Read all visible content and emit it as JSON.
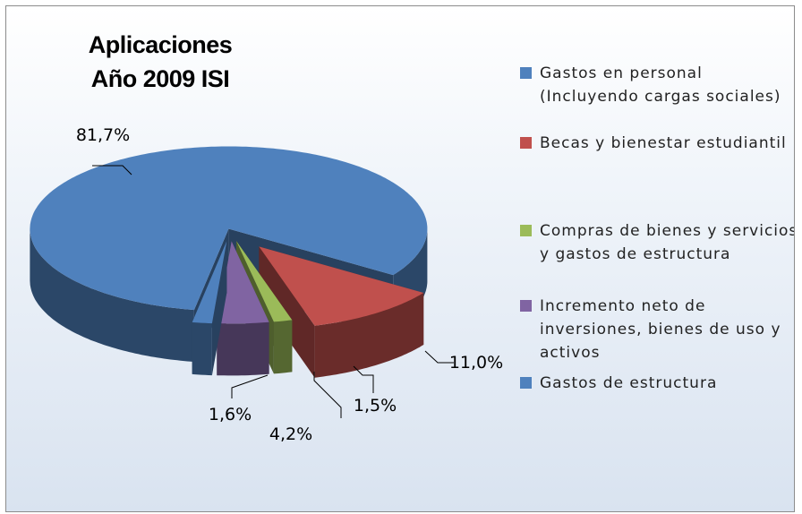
{
  "chart_data": {
    "type": "pie",
    "title": "Aplicaciones Año 2009 ISI",
    "categories": [
      "Gastos en personal (Incluyendo cargas sociales)",
      "Becas y bienestar estudiantil",
      "Compras de bienes y servicios y gastos de estructura",
      "Incremento neto de inversiones, bienes de uso y activos",
      "Gastos de estructura"
    ],
    "values": [
      81.7,
      11.0,
      1.5,
      4.2,
      1.6
    ],
    "value_labels": [
      "81,7%",
      "11,0%",
      "1,5%",
      "4,2%",
      "1,6%"
    ],
    "colors": [
      "#4f81bd",
      "#c0504d",
      "#9bbb59",
      "#8064a2",
      "#4f81bd"
    ],
    "legend": "right"
  }
}
